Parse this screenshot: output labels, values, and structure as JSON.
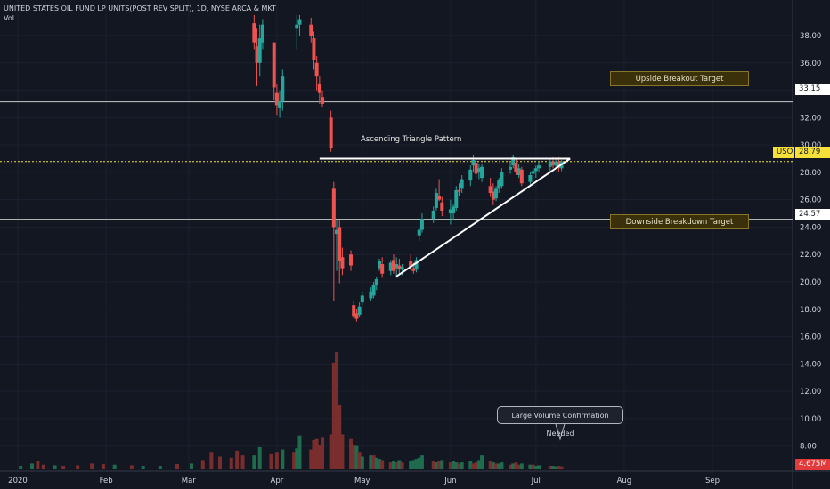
{
  "header": {
    "title": "UNITED STATES OIL FUND LP UNITS(POST REV SPLIT), 1D, NYSE ARCA & MKT",
    "vol_label": "Vol"
  },
  "annotations": {
    "upside_target": "Upside Breakout Target",
    "downside_target": "Downside Breakdown Target",
    "pattern": "Ascending Triangle Pattern",
    "volume_note": "Large Volume Confirmation Needed"
  },
  "price_tags": {
    "upside_level": "33.15",
    "downside_level": "24.57",
    "symbol": "USO",
    "last_price": "28.79",
    "last_volume": "4.675M"
  },
  "colors": {
    "background": "#131722",
    "up": "#26a69a",
    "down": "#ef5350",
    "text": "#d1d4dc",
    "last_price": "#f6e03a"
  },
  "chart_data": {
    "type": "candlestick",
    "x_ticks": [
      "2020",
      "Feb",
      "Mar",
      "Apr",
      "May",
      "Jun",
      "Jul",
      "Aug",
      "Sep"
    ],
    "y_ticks": [
      8.0,
      10.0,
      12.0,
      14.0,
      16.0,
      18.0,
      20.0,
      22.0,
      24.0,
      26.0,
      28.0,
      30.0,
      32.0,
      34.0,
      36.0,
      38.0
    ],
    "y_tick_labels": [
      "8.00",
      "10.00",
      "12.00",
      "14.00",
      "16.00",
      "18.00",
      "20.00",
      "22.00",
      "24.00",
      "26.00",
      "28.00",
      "30.00",
      "32.00",
      "34.00",
      "36.00",
      "38.00"
    ],
    "ylim": [
      7.2,
      39.3
    ],
    "horizontal_levels": [
      33.15,
      24.57
    ],
    "last_price": 28.79,
    "triangle": {
      "support_start": {
        "date": "2020-05-13",
        "price": 20.4
      },
      "apex": {
        "date": "2020-07-13",
        "price": 29.0
      },
      "resistance_start": {
        "date": "2020-04-16",
        "price": 29.0
      }
    },
    "candles": [
      {
        "d": "2020-03-24",
        "o": 38.9,
        "h": 39.5,
        "l": 37.0,
        "c": 37.5
      },
      {
        "d": "2020-03-25",
        "o": 37.2,
        "h": 38.5,
        "l": 34.3,
        "c": 36.0
      },
      {
        "d": "2020-03-26",
        "o": 36.0,
        "h": 38.8,
        "l": 35.0,
        "c": 37.8
      },
      {
        "d": "2020-03-27",
        "o": 37.5,
        "h": 39.2,
        "l": 37.0,
        "c": 38.8
      },
      {
        "d": "2020-03-31",
        "o": 37.5,
        "h": 37.5,
        "l": 33.3,
        "c": 34.2
      },
      {
        "d": "2020-04-01",
        "o": 33.8,
        "h": 34.5,
        "l": 32.2,
        "c": 32.9
      },
      {
        "d": "2020-04-02",
        "o": 32.7,
        "h": 34.0,
        "l": 32.0,
        "c": 33.2
      },
      {
        "d": "2020-04-03",
        "o": 33.2,
        "h": 35.5,
        "l": 32.5,
        "c": 35.0
      },
      {
        "d": "2020-04-08",
        "o": 38.5,
        "h": 39.5,
        "l": 37.0,
        "c": 38.8
      },
      {
        "d": "2020-04-09",
        "o": 38.8,
        "h": 39.5,
        "l": 38.0,
        "c": 39.2
      },
      {
        "d": "2020-04-13",
        "o": 38.8,
        "h": 39.3,
        "l": 37.5,
        "c": 38.0
      },
      {
        "d": "2020-04-14",
        "o": 37.8,
        "h": 38.3,
        "l": 35.5,
        "c": 36.2
      },
      {
        "d": "2020-04-15",
        "o": 36.0,
        "h": 36.5,
        "l": 34.0,
        "c": 35.0
      },
      {
        "d": "2020-04-16",
        "o": 34.5,
        "h": 35.0,
        "l": 33.0,
        "c": 33.8
      },
      {
        "d": "2020-04-17",
        "o": 33.5,
        "h": 34.0,
        "l": 32.8,
        "c": 33.0
      },
      {
        "d": "2020-04-20",
        "o": 32.0,
        "h": 32.5,
        "l": 29.5,
        "c": 29.8
      },
      {
        "d": "2020-04-21",
        "o": 26.8,
        "h": 27.3,
        "l": 18.6,
        "c": 24.0
      },
      {
        "d": "2020-04-22",
        "o": 23.5,
        "h": 24.5,
        "l": 20.8,
        "c": 23.8
      },
      {
        "d": "2020-04-23",
        "o": 24.0,
        "h": 24.5,
        "l": 19.9,
        "c": 21.5
      },
      {
        "d": "2020-04-24",
        "o": 21.8,
        "h": 22.5,
        "l": 20.5,
        "c": 21.0
      },
      {
        "d": "2020-04-27",
        "o": 22.0,
        "h": 22.3,
        "l": 20.8,
        "c": 21.2
      },
      {
        "d": "2020-04-28",
        "o": 18.3,
        "h": 18.6,
        "l": 17.3,
        "c": 17.5
      },
      {
        "d": "2020-04-29",
        "o": 17.7,
        "h": 18.0,
        "l": 17.1,
        "c": 17.3
      },
      {
        "d": "2020-04-30",
        "o": 17.6,
        "h": 18.5,
        "l": 17.4,
        "c": 18.2
      },
      {
        "d": "2020-05-01",
        "o": 18.5,
        "h": 19.3,
        "l": 18.3,
        "c": 19.0
      },
      {
        "d": "2020-05-04",
        "o": 18.8,
        "h": 19.6,
        "l": 18.6,
        "c": 19.3
      },
      {
        "d": "2020-05-05",
        "o": 19.0,
        "h": 20.0,
        "l": 18.8,
        "c": 19.8
      },
      {
        "d": "2020-05-06",
        "o": 19.8,
        "h": 20.4,
        "l": 19.4,
        "c": 20.2
      },
      {
        "d": "2020-05-07",
        "o": 21.0,
        "h": 21.7,
        "l": 20.8,
        "c": 21.5
      },
      {
        "d": "2020-05-08",
        "o": 21.3,
        "h": 21.8,
        "l": 20.3,
        "c": 20.6
      },
      {
        "d": "2020-05-11",
        "o": 20.8,
        "h": 21.6,
        "l": 20.5,
        "c": 21.4
      },
      {
        "d": "2020-05-12",
        "o": 21.6,
        "h": 22.0,
        "l": 20.6,
        "c": 20.8
      },
      {
        "d": "2020-05-13",
        "o": 21.0,
        "h": 21.8,
        "l": 20.3,
        "c": 21.3
      },
      {
        "d": "2020-05-14",
        "o": 21.2,
        "h": 21.7,
        "l": 20.6,
        "c": 20.9
      },
      {
        "d": "2020-05-15",
        "o": 20.9,
        "h": 21.3,
        "l": 20.5,
        "c": 21.1
      },
      {
        "d": "2020-05-18",
        "o": 21.5,
        "h": 22.0,
        "l": 20.9,
        "c": 21.1
      },
      {
        "d": "2020-05-19",
        "o": 21.0,
        "h": 21.4,
        "l": 20.6,
        "c": 20.8
      },
      {
        "d": "2020-05-20",
        "o": 20.9,
        "h": 21.8,
        "l": 20.7,
        "c": 21.6
      },
      {
        "d": "2020-05-21",
        "o": 23.4,
        "h": 24.0,
        "l": 23.0,
        "c": 23.8
      },
      {
        "d": "2020-05-22",
        "o": 23.8,
        "h": 25.0,
        "l": 23.6,
        "c": 24.6
      },
      {
        "d": "2020-05-26",
        "o": 24.6,
        "h": 25.5,
        "l": 24.3,
        "c": 25.2
      },
      {
        "d": "2020-05-27",
        "o": 25.4,
        "h": 26.8,
        "l": 25.2,
        "c": 26.5
      },
      {
        "d": "2020-05-28",
        "o": 26.3,
        "h": 27.5,
        "l": 25.9,
        "c": 26.0
      },
      {
        "d": "2020-05-29",
        "o": 25.8,
        "h": 26.2,
        "l": 24.8,
        "c": 25.2
      },
      {
        "d": "2020-06-01",
        "o": 25.0,
        "h": 26.0,
        "l": 24.2,
        "c": 25.3
      },
      {
        "d": "2020-06-02",
        "o": 25.0,
        "h": 25.7,
        "l": 24.5,
        "c": 25.5
      },
      {
        "d": "2020-06-03",
        "o": 25.4,
        "h": 27.0,
        "l": 25.2,
        "c": 26.7
      },
      {
        "d": "2020-06-04",
        "o": 26.7,
        "h": 27.2,
        "l": 26.3,
        "c": 26.6
      },
      {
        "d": "2020-06-05",
        "o": 26.8,
        "h": 27.8,
        "l": 26.5,
        "c": 27.5
      },
      {
        "d": "2020-06-08",
        "o": 27.4,
        "h": 28.5,
        "l": 27.0,
        "c": 28.2
      },
      {
        "d": "2020-06-09",
        "o": 28.5,
        "h": 29.3,
        "l": 28.0,
        "c": 28.9
      },
      {
        "d": "2020-06-10",
        "o": 28.7,
        "h": 29.0,
        "l": 27.6,
        "c": 27.9
      },
      {
        "d": "2020-06-11",
        "o": 28.0,
        "h": 28.6,
        "l": 27.5,
        "c": 28.3
      },
      {
        "d": "2020-06-12",
        "o": 27.6,
        "h": 28.6,
        "l": 27.3,
        "c": 28.4
      },
      {
        "d": "2020-06-15",
        "o": 27.0,
        "h": 27.6,
        "l": 26.2,
        "c": 26.5
      },
      {
        "d": "2020-06-16",
        "o": 26.6,
        "h": 27.2,
        "l": 25.6,
        "c": 26.0
      },
      {
        "d": "2020-06-17",
        "o": 26.1,
        "h": 27.0,
        "l": 25.9,
        "c": 26.8
      },
      {
        "d": "2020-06-18",
        "o": 26.8,
        "h": 27.6,
        "l": 26.5,
        "c": 27.4
      },
      {
        "d": "2020-06-19",
        "o": 27.0,
        "h": 28.3,
        "l": 26.8,
        "c": 28.0
      },
      {
        "d": "2020-06-22",
        "o": 28.2,
        "h": 28.8,
        "l": 27.9,
        "c": 28.4
      },
      {
        "d": "2020-06-23",
        "o": 28.5,
        "h": 29.3,
        "l": 28.3,
        "c": 29.1
      },
      {
        "d": "2020-06-24",
        "o": 28.7,
        "h": 29.0,
        "l": 27.8,
        "c": 28.0
      },
      {
        "d": "2020-06-25",
        "o": 27.8,
        "h": 28.6,
        "l": 27.6,
        "c": 28.3
      },
      {
        "d": "2020-06-26",
        "o": 28.2,
        "h": 28.4,
        "l": 27.0,
        "c": 27.2
      },
      {
        "d": "2020-06-29",
        "o": 27.3,
        "h": 28.0,
        "l": 27.0,
        "c": 27.8
      },
      {
        "d": "2020-06-30",
        "o": 27.9,
        "h": 28.3,
        "l": 27.5,
        "c": 28.1
      },
      {
        "d": "2020-07-01",
        "o": 28.1,
        "h": 28.5,
        "l": 27.6,
        "c": 28.3
      },
      {
        "d": "2020-07-02",
        "o": 28.3,
        "h": 28.8,
        "l": 28.0,
        "c": 28.5
      },
      {
        "d": "2020-07-06",
        "o": 28.4,
        "h": 29.0,
        "l": 28.1,
        "c": 28.8
      },
      {
        "d": "2020-07-07",
        "o": 28.8,
        "h": 29.1,
        "l": 28.3,
        "c": 28.5
      },
      {
        "d": "2020-07-08",
        "o": 28.5,
        "h": 29.0,
        "l": 28.3,
        "c": 28.8
      },
      {
        "d": "2020-07-09",
        "o": 28.8,
        "h": 29.1,
        "l": 28.0,
        "c": 28.3
      },
      {
        "d": "2020-07-10",
        "o": 28.3,
        "h": 28.9,
        "l": 28.1,
        "c": 28.79
      }
    ],
    "volume": [
      {
        "d": "2020-01-02",
        "v": 0.6,
        "up": true
      },
      {
        "d": "2020-01-06",
        "v": 1.0,
        "up": true
      },
      {
        "d": "2020-01-08",
        "v": 1.4,
        "up": false
      },
      {
        "d": "2020-01-10",
        "v": 0.8,
        "up": false
      },
      {
        "d": "2020-01-14",
        "v": 0.7,
        "up": true
      },
      {
        "d": "2020-01-17",
        "v": 0.6,
        "up": false
      },
      {
        "d": "2020-01-22",
        "v": 0.7,
        "up": false
      },
      {
        "d": "2020-01-27",
        "v": 1.0,
        "up": false
      },
      {
        "d": "2020-01-31",
        "v": 0.9,
        "up": false
      },
      {
        "d": "2020-02-04",
        "v": 0.8,
        "up": true
      },
      {
        "d": "2020-02-10",
        "v": 0.7,
        "up": false
      },
      {
        "d": "2020-02-14",
        "v": 0.6,
        "up": true
      },
      {
        "d": "2020-02-20",
        "v": 0.6,
        "up": true
      },
      {
        "d": "2020-02-26",
        "v": 0.9,
        "up": false
      },
      {
        "d": "2020-03-02",
        "v": 1.0,
        "up": true
      },
      {
        "d": "2020-03-06",
        "v": 1.6,
        "up": false
      },
      {
        "d": "2020-03-09",
        "v": 3.0,
        "up": false
      },
      {
        "d": "2020-03-12",
        "v": 2.2,
        "up": false
      },
      {
        "d": "2020-03-16",
        "v": 2.0,
        "up": false
      },
      {
        "d": "2020-03-18",
        "v": 3.2,
        "up": false
      },
      {
        "d": "2020-03-20",
        "v": 2.4,
        "up": false
      },
      {
        "d": "2020-03-24",
        "v": 2.4,
        "up": true
      },
      {
        "d": "2020-03-26",
        "v": 3.8,
        "up": true
      },
      {
        "d": "2020-03-30",
        "v": 2.6,
        "up": false
      },
      {
        "d": "2020-04-01",
        "v": 3.0,
        "up": false
      },
      {
        "d": "2020-04-03",
        "v": 3.4,
        "up": true
      },
      {
        "d": "2020-04-07",
        "v": 3.0,
        "up": false
      },
      {
        "d": "2020-04-08",
        "v": 3.6,
        "up": true
      },
      {
        "d": "2020-04-09",
        "v": 5.8,
        "up": true
      },
      {
        "d": "2020-04-13",
        "v": 3.4,
        "up": false
      },
      {
        "d": "2020-04-14",
        "v": 5.0,
        "up": false
      },
      {
        "d": "2020-04-15",
        "v": 5.2,
        "up": false
      },
      {
        "d": "2020-04-16",
        "v": 4.2,
        "up": false
      },
      {
        "d": "2020-04-17",
        "v": 5.4,
        "up": false
      },
      {
        "d": "2020-04-20",
        "v": 6.0,
        "up": false
      },
      {
        "d": "2020-04-21",
        "v": 18.2,
        "up": false
      },
      {
        "d": "2020-04-22",
        "v": 20.0,
        "up": false
      },
      {
        "d": "2020-04-23",
        "v": 11.0,
        "up": false
      },
      {
        "d": "2020-04-24",
        "v": 6.0,
        "up": false
      },
      {
        "d": "2020-04-27",
        "v": 5.2,
        "up": false
      },
      {
        "d": "2020-04-28",
        "v": 4.2,
        "up": false
      },
      {
        "d": "2020-04-29",
        "v": 4.0,
        "up": true
      },
      {
        "d": "2020-04-30",
        "v": 3.0,
        "up": false
      },
      {
        "d": "2020-05-01",
        "v": 2.2,
        "up": true
      },
      {
        "d": "2020-05-04",
        "v": 2.4,
        "up": true
      },
      {
        "d": "2020-05-05",
        "v": 2.4,
        "up": false
      },
      {
        "d": "2020-05-06",
        "v": 2.0,
        "up": true
      },
      {
        "d": "2020-05-07",
        "v": 1.8,
        "up": true
      },
      {
        "d": "2020-05-08",
        "v": 1.6,
        "up": false
      },
      {
        "d": "2020-05-11",
        "v": 1.2,
        "up": false
      },
      {
        "d": "2020-05-12",
        "v": 1.4,
        "up": true
      },
      {
        "d": "2020-05-13",
        "v": 1.2,
        "up": false
      },
      {
        "d": "2020-05-14",
        "v": 1.6,
        "up": true
      },
      {
        "d": "2020-05-15",
        "v": 1.2,
        "up": false
      },
      {
        "d": "2020-05-18",
        "v": 1.4,
        "up": true
      },
      {
        "d": "2020-05-19",
        "v": 1.6,
        "up": true
      },
      {
        "d": "2020-05-20",
        "v": 1.8,
        "up": true
      },
      {
        "d": "2020-05-21",
        "v": 2.0,
        "up": true
      },
      {
        "d": "2020-05-22",
        "v": 2.4,
        "up": true
      },
      {
        "d": "2020-05-26",
        "v": 1.4,
        "up": false
      },
      {
        "d": "2020-05-27",
        "v": 1.2,
        "up": true
      },
      {
        "d": "2020-05-28",
        "v": 1.4,
        "up": false
      },
      {
        "d": "2020-05-29",
        "v": 1.6,
        "up": true
      },
      {
        "d": "2020-06-01",
        "v": 1.2,
        "up": false
      },
      {
        "d": "2020-06-02",
        "v": 1.4,
        "up": true
      },
      {
        "d": "2020-06-03",
        "v": 1.2,
        "up": true
      },
      {
        "d": "2020-06-04",
        "v": 1.0,
        "up": false
      },
      {
        "d": "2020-06-05",
        "v": 1.2,
        "up": true
      },
      {
        "d": "2020-06-08",
        "v": 1.4,
        "up": true
      },
      {
        "d": "2020-06-09",
        "v": 1.0,
        "up": false
      },
      {
        "d": "2020-06-10",
        "v": 1.2,
        "up": false
      },
      {
        "d": "2020-06-11",
        "v": 1.6,
        "up": true
      },
      {
        "d": "2020-06-12",
        "v": 2.4,
        "up": true
      },
      {
        "d": "2020-06-15",
        "v": 1.4,
        "up": false
      },
      {
        "d": "2020-06-16",
        "v": 1.2,
        "up": true
      },
      {
        "d": "2020-06-17",
        "v": 1.0,
        "up": false
      },
      {
        "d": "2020-06-18",
        "v": 1.0,
        "up": true
      },
      {
        "d": "2020-06-19",
        "v": 1.2,
        "up": true
      },
      {
        "d": "2020-06-22",
        "v": 0.8,
        "up": false
      },
      {
        "d": "2020-06-23",
        "v": 1.0,
        "up": true
      },
      {
        "d": "2020-06-24",
        "v": 1.2,
        "up": false
      },
      {
        "d": "2020-06-25",
        "v": 0.8,
        "up": false
      },
      {
        "d": "2020-06-26",
        "v": 1.0,
        "up": true
      },
      {
        "d": "2020-06-29",
        "v": 0.8,
        "up": true
      },
      {
        "d": "2020-06-30",
        "v": 0.8,
        "up": false
      },
      {
        "d": "2020-07-01",
        "v": 0.6,
        "up": true
      },
      {
        "d": "2020-07-02",
        "v": 0.7,
        "up": true
      },
      {
        "d": "2020-07-06",
        "v": 0.6,
        "up": false
      },
      {
        "d": "2020-07-07",
        "v": 0.6,
        "up": true
      },
      {
        "d": "2020-07-08",
        "v": 0.5,
        "up": true
      },
      {
        "d": "2020-07-09",
        "v": 0.6,
        "up": false
      },
      {
        "d": "2020-07-10",
        "v": 0.5,
        "up": false
      }
    ]
  }
}
